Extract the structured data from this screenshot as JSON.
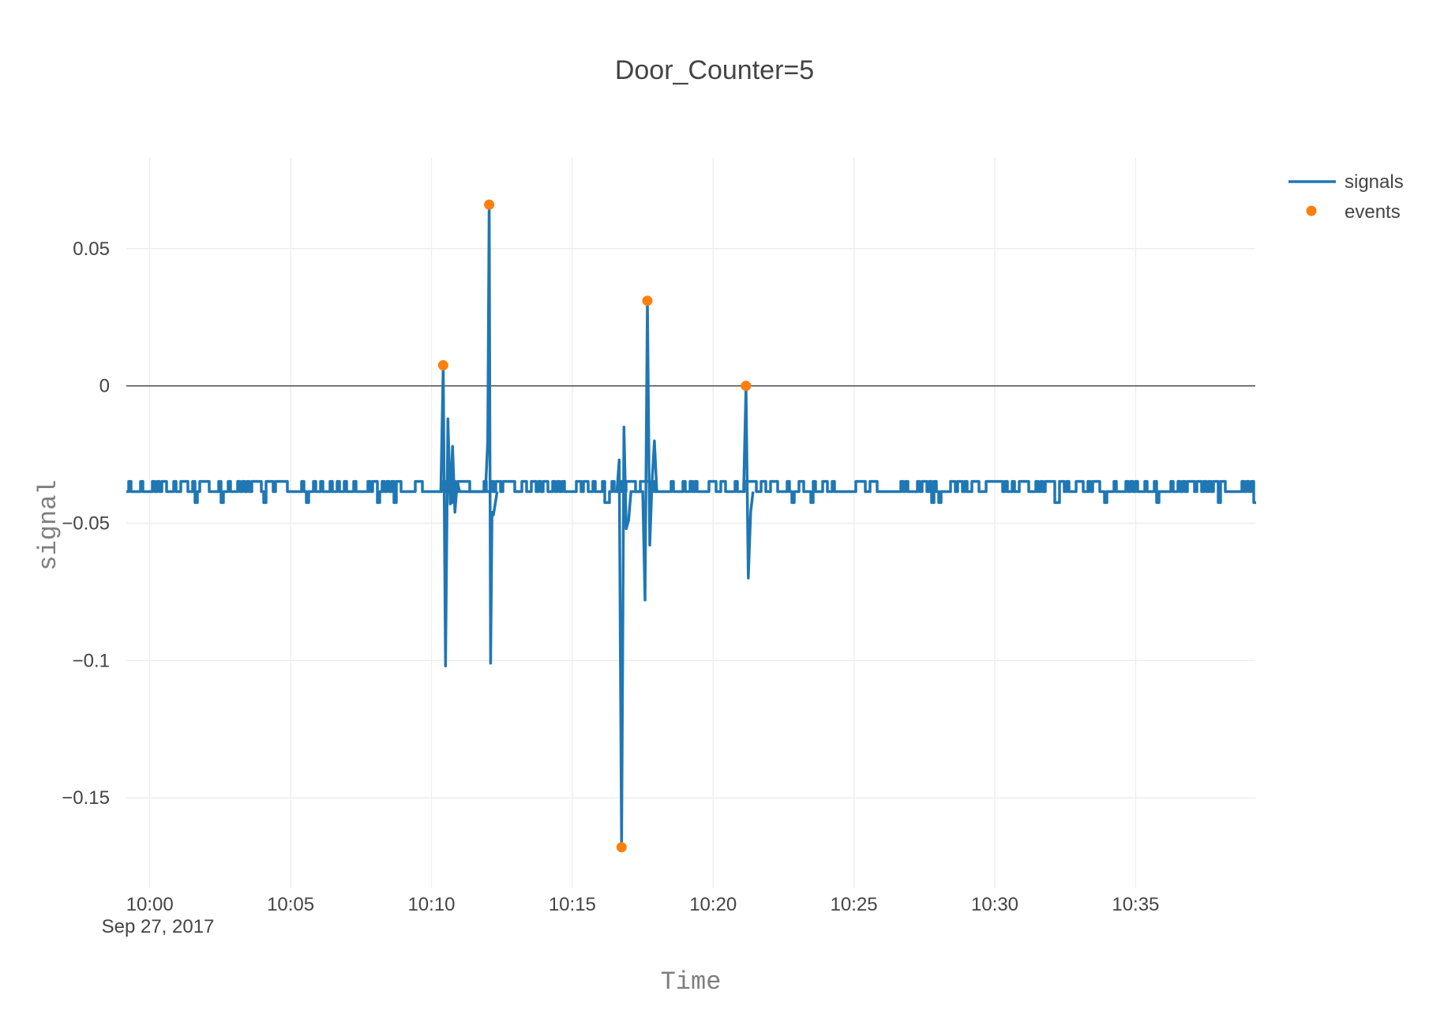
{
  "chart_data": {
    "type": "line",
    "title": "Door_Counter=5",
    "xlabel": "Time",
    "ylabel": "signal",
    "date_label": "Sep 27, 2017",
    "x_axis_type": "time",
    "x_start": "2017-09-27 09:59:10",
    "x_end": "2017-09-27 10:39:15",
    "x_tick_labels": [
      "10:00",
      "10:05",
      "10:10",
      "10:15",
      "10:20",
      "10:25",
      "10:30",
      "10:35"
    ],
    "ylim": [
      -0.183,
      0.083
    ],
    "y_ticks": [
      0.05,
      0,
      -0.05,
      -0.1,
      -0.15
    ],
    "y_tick_labels": [
      "0.05",
      "0",
      "−0.05",
      "−0.1",
      "−0.15"
    ],
    "grid": true,
    "legend_position": "top-right",
    "series": [
      {
        "name": "signals",
        "mode": "lines",
        "color": "#1f77b4",
        "baseline": -0.0385,
        "noise_high": -0.0348,
        "noise_low": -0.0425,
        "x": [
          "10:10:20",
          "10:10:25",
          "10:10:30",
          "10:10:35",
          "10:10:40",
          "10:10:45",
          "10:10:50",
          "10:10:55",
          "10:11:00",
          "10:11:55",
          "10:12:00",
          "10:12:03",
          "10:12:06",
          "10:12:09",
          "10:12:12",
          "10:12:20",
          "10:16:35",
          "10:16:40",
          "10:16:45",
          "10:16:50",
          "10:16:55",
          "10:17:00",
          "10:17:05",
          "10:17:30",
          "10:17:35",
          "10:17:40",
          "10:17:45",
          "10:17:50",
          "10:17:55",
          "10:18:00",
          "10:21:05",
          "10:21:10",
          "10:21:15",
          "10:21:20",
          "10:21:25"
        ],
        "y": [
          -0.0385,
          0.0075,
          -0.102,
          -0.012,
          -0.043,
          -0.022,
          -0.046,
          -0.035,
          -0.0385,
          -0.0385,
          -0.02,
          0.066,
          -0.101,
          -0.046,
          -0.047,
          -0.0385,
          -0.0385,
          -0.027,
          -0.168,
          -0.015,
          -0.052,
          -0.049,
          -0.0385,
          -0.0385,
          -0.078,
          0.031,
          -0.058,
          -0.035,
          -0.02,
          -0.0385,
          -0.0385,
          0.0,
          -0.07,
          -0.046,
          -0.0385
        ]
      },
      {
        "name": "events",
        "mode": "markers",
        "color": "#ff7f0e",
        "x": [
          "10:10:25",
          "10:12:03",
          "10:16:45",
          "10:17:40",
          "10:21:10"
        ],
        "y": [
          0.0075,
          0.066,
          -0.168,
          0.031,
          0.0
        ]
      }
    ]
  }
}
